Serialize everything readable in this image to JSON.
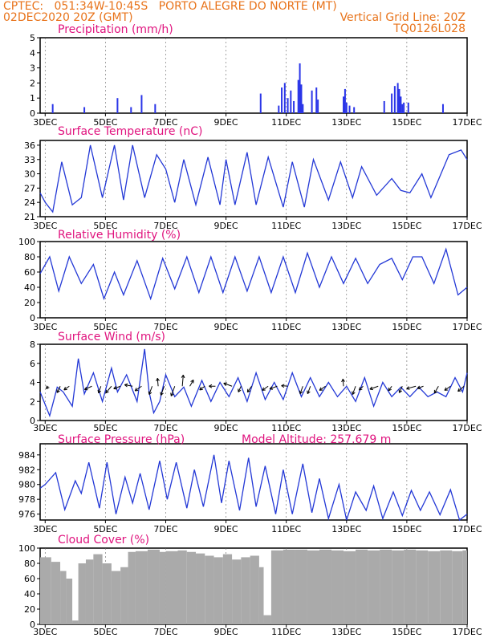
{
  "header": {
    "line1": "CPTEC:   051:34W-10:45S   PORTO ALEGRE DO NORTE (MT)",
    "line2": "02DEC2020 20Z (GMT)",
    "grid_note": "Vertical Grid Line: 20Z",
    "code": "TQ0126L028"
  },
  "colors": {
    "header": "#e8731a",
    "title": "#e0137e",
    "line": "#2338d6",
    "bar": "#2a35e8",
    "cloud": "#aaaaaa",
    "frame": "#000000"
  },
  "x_axis": {
    "start": 2.833,
    "end": 17.0,
    "ticks": [
      3,
      5,
      7,
      9,
      11,
      13,
      15,
      17
    ],
    "tick_labels": [
      "3DEC",
      "5DEC",
      "7DEC",
      "9DEC",
      "11DEC",
      "13DEC",
      "15DEC",
      "17DEC"
    ]
  },
  "chart_data": [
    {
      "type": "bar",
      "title": "Precipitation (mm/h)",
      "ylim": [
        0,
        5
      ],
      "yticks": [
        0,
        1,
        2,
        3,
        4,
        5
      ],
      "x": [
        3.25,
        4.3,
        5.4,
        5.85,
        6.2,
        6.65,
        10.15,
        10.75,
        10.85,
        10.95,
        11.05,
        11.15,
        11.25,
        11.4,
        11.45,
        11.5,
        11.55,
        11.85,
        12.0,
        12.05,
        12.9,
        12.95,
        13.0,
        13.1,
        13.25,
        14.25,
        14.5,
        14.6,
        14.7,
        14.75,
        14.8,
        14.85,
        14.9,
        15.05,
        16.2
      ],
      "values": [
        0.6,
        0.4,
        1.0,
        0.4,
        1.2,
        0.6,
        1.3,
        0.5,
        1.7,
        2.0,
        1.0,
        1.5,
        0.8,
        2.2,
        3.3,
        1.9,
        0.6,
        1.5,
        1.7,
        0.9,
        1.1,
        1.6,
        0.7,
        0.5,
        0.4,
        0.8,
        1.3,
        1.8,
        2.0,
        1.6,
        1.1,
        0.6,
        0.7,
        0.7,
        0.6
      ]
    },
    {
      "type": "line",
      "title": "Surface Temperature (nC)",
      "ylim": [
        21,
        37
      ],
      "yticks": [
        21,
        24,
        27,
        30,
        33,
        36
      ],
      "x": [
        2.833,
        3.0,
        3.25,
        3.55,
        3.9,
        4.2,
        4.5,
        4.9,
        5.3,
        5.6,
        5.9,
        6.3,
        6.7,
        7.0,
        7.3,
        7.6,
        8.0,
        8.4,
        8.8,
        9.0,
        9.3,
        9.7,
        10.0,
        10.4,
        10.9,
        11.2,
        11.6,
        11.9,
        12.4,
        12.8,
        13.2,
        13.5,
        14.0,
        14.5,
        14.8,
        15.1,
        15.5,
        15.8,
        16.4,
        16.8,
        17.0
      ],
      "values": [
        26.0,
        24.0,
        22.0,
        32.5,
        23.5,
        25.0,
        36.0,
        25.0,
        36.0,
        24.5,
        36.0,
        25.0,
        34.0,
        31.0,
        24.0,
        33.0,
        23.5,
        33.5,
        23.5,
        33.0,
        23.5,
        34.5,
        23.5,
        33.5,
        23.0,
        32.5,
        23.0,
        33.0,
        24.5,
        32.5,
        25.0,
        31.5,
        25.5,
        29.0,
        26.5,
        26.0,
        30.0,
        25.0,
        34.0,
        35.0,
        33.0
      ]
    },
    {
      "type": "line",
      "title": "Relative Humidity (%)",
      "ylim": [
        0,
        100
      ],
      "yticks": [
        0,
        20,
        40,
        60,
        80,
        100
      ],
      "x": [
        2.833,
        3.15,
        3.45,
        3.8,
        4.2,
        4.6,
        4.95,
        5.3,
        5.6,
        6.05,
        6.5,
        6.9,
        7.3,
        7.7,
        8.1,
        8.5,
        8.9,
        9.3,
        9.7,
        10.1,
        10.5,
        10.9,
        11.3,
        11.7,
        12.1,
        12.5,
        12.9,
        13.3,
        13.7,
        14.1,
        14.5,
        14.85,
        15.2,
        15.5,
        15.9,
        16.3,
        16.7,
        17.0
      ],
      "values": [
        58,
        80,
        35,
        80,
        45,
        70,
        25,
        60,
        30,
        75,
        25,
        78,
        38,
        80,
        33,
        80,
        33,
        80,
        35,
        80,
        33,
        80,
        33,
        85,
        40,
        80,
        45,
        78,
        45,
        70,
        78,
        50,
        80,
        80,
        45,
        90,
        30,
        40
      ]
    },
    {
      "type": "line",
      "title": "Surface Wind (m/s)",
      "ylim": [
        0,
        8
      ],
      "yticks": [
        0,
        2,
        4,
        6,
        8
      ],
      "x": [
        2.833,
        3.15,
        3.4,
        3.6,
        3.9,
        4.1,
        4.3,
        4.6,
        4.9,
        5.2,
        5.4,
        5.7,
        6.05,
        6.3,
        6.45,
        6.6,
        6.8,
        7.0,
        7.3,
        7.6,
        7.85,
        8.2,
        8.5,
        8.8,
        9.1,
        9.4,
        9.7,
        10.0,
        10.3,
        10.6,
        10.9,
        11.2,
        11.5,
        11.8,
        12.1,
        12.4,
        12.7,
        13.0,
        13.3,
        13.6,
        13.9,
        14.2,
        14.5,
        14.8,
        15.1,
        15.4,
        15.7,
        16.0,
        16.3,
        16.6,
        16.85,
        17.0
      ],
      "values": [
        3.0,
        0.5,
        3.5,
        3.0,
        1.5,
        6.5,
        2.8,
        5.0,
        2.0,
        5.5,
        3.0,
        4.8,
        2.0,
        7.5,
        3.0,
        0.8,
        2.0,
        4.8,
        2.5,
        3.5,
        1.5,
        4.2,
        2.0,
        4.0,
        2.5,
        4.5,
        2.0,
        5.0,
        2.2,
        4.0,
        2.2,
        5.0,
        2.5,
        4.5,
        2.5,
        4.0,
        2.5,
        3.6,
        2.0,
        4.5,
        1.5,
        4.0,
        2.5,
        3.5,
        2.5,
        3.5,
        2.5,
        3.0,
        2.5,
        4.5,
        3.0,
        5.0
      ],
      "arrows": {
        "x": [
          3.1,
          3.5,
          3.8,
          4.55,
          4.85,
          5.2,
          5.5,
          5.9,
          6.2,
          6.55,
          6.75,
          6.95,
          7.3,
          7.55,
          7.8,
          8.3,
          8.65,
          9.2,
          9.5,
          9.85,
          10.4,
          10.7,
          11.05,
          11.55,
          11.8,
          12.3,
          12.9,
          13.3,
          13.55,
          14.05,
          14.5,
          14.85,
          15.3,
          15.55,
          16.05,
          16.45,
          16.9
        ],
        "angle_deg": [
          235,
          245,
          215,
          205,
          250,
          230,
          200,
          170,
          215,
          250,
          95,
          250,
          250,
          85,
          60,
          215,
          180,
          160,
          245,
          235,
          215,
          200,
          175,
          250,
          250,
          215,
          95,
          250,
          225,
          200,
          235,
          245,
          195,
          200,
          240,
          215,
          220
        ],
        "length": [
          4,
          9,
          8,
          10,
          9,
          11,
          9,
          10,
          10,
          11,
          10,
          12,
          13,
          14,
          9,
          8,
          8,
          11,
          8,
          9,
          9,
          10,
          8,
          10,
          10,
          9,
          9,
          11,
          7,
          11,
          7,
          9,
          12,
          8,
          10,
          9,
          10
        ]
      }
    },
    {
      "type": "line",
      "title": "Surface Pressure (hPa)",
      "annotation": "Model Altitude: 257.679  m",
      "ylim": [
        975.2,
        985.5
      ],
      "yticks": [
        976,
        978,
        980,
        982,
        984
      ],
      "x": [
        2.833,
        3.0,
        3.35,
        3.65,
        4.0,
        4.2,
        4.45,
        4.8,
        5.05,
        5.35,
        5.65,
        5.9,
        6.15,
        6.45,
        6.8,
        7.05,
        7.35,
        7.7,
        7.95,
        8.25,
        8.6,
        8.85,
        9.1,
        9.45,
        9.75,
        10.0,
        10.3,
        10.65,
        10.9,
        11.2,
        11.55,
        11.85,
        12.1,
        12.4,
        12.75,
        13.0,
        13.3,
        13.65,
        13.9,
        14.2,
        14.55,
        14.85,
        15.15,
        15.45,
        15.75,
        16.1,
        16.45,
        16.75,
        17.0
      ],
      "values": [
        979.5,
        980.0,
        981.6,
        976.6,
        980.5,
        978.8,
        983.0,
        976.8,
        983.0,
        976.0,
        981.0,
        977.5,
        981.5,
        976.6,
        983.2,
        978.0,
        983.0,
        976.8,
        982.0,
        977.0,
        984.0,
        977.5,
        983.2,
        976.5,
        983.6,
        977.0,
        982.5,
        976.0,
        982.0,
        976.0,
        982.8,
        976.2,
        980.8,
        975.4,
        980.0,
        975.2,
        979.0,
        976.5,
        979.8,
        975.4,
        979.0,
        975.8,
        979.2,
        976.5,
        979.0,
        975.9,
        979.3,
        975.2,
        976.0
      ]
    },
    {
      "type": "bar",
      "title": "Cloud Cover (%)",
      "ylim": [
        0,
        100
      ],
      "yticks": [
        0,
        20,
        40,
        60,
        80,
        100
      ],
      "x": [
        2.833,
        3.2,
        3.5,
        3.7,
        3.9,
        4.1,
        4.35,
        4.6,
        4.9,
        5.2,
        5.5,
        5.75,
        6.0,
        6.4,
        6.8,
        7.0,
        7.4,
        7.7,
        8.0,
        8.3,
        8.6,
        8.9,
        9.2,
        9.5,
        9.8,
        10.1,
        10.25,
        10.5,
        10.9,
        11.3,
        11.7,
        12.1,
        12.5,
        12.9,
        13.3,
        13.7,
        14.1,
        14.5,
        14.9,
        15.3,
        15.7,
        16.1,
        16.5,
        16.85
      ],
      "values": [
        88,
        82,
        70,
        60,
        5,
        80,
        85,
        92,
        80,
        70,
        75,
        95,
        96,
        98,
        95,
        96,
        97,
        95,
        93,
        90,
        88,
        92,
        85,
        88,
        90,
        75,
        12,
        97,
        98,
        98,
        97,
        98,
        97,
        96,
        98,
        97,
        98,
        97,
        98,
        97,
        96,
        97,
        96,
        97
      ]
    }
  ]
}
